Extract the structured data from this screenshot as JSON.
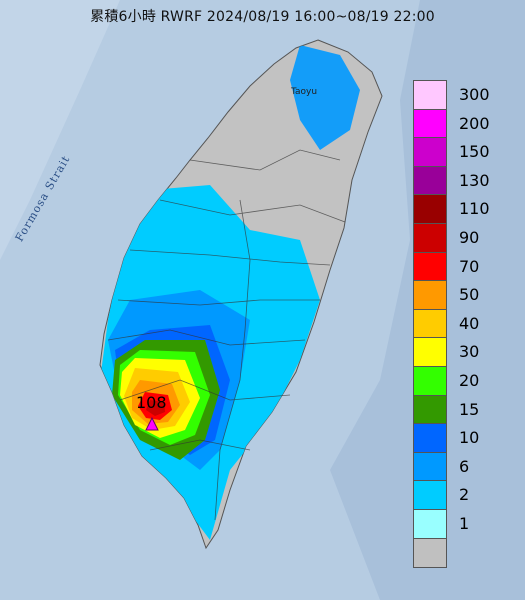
{
  "title": "累積6小時 RWRF 2024/08/19 16:00~08/19 22:00",
  "strait_label": "Formosa Strait",
  "city_label": "Taoyu",
  "max_value": "108",
  "legend": {
    "bins": [
      {
        "label": "300",
        "color": "#ffc8ff"
      },
      {
        "label": "200",
        "color": "#ff00ff"
      },
      {
        "label": "150",
        "color": "#cc00cc"
      },
      {
        "label": "130",
        "color": "#990099"
      },
      {
        "label": "110",
        "color": "#990000"
      },
      {
        "label": "90",
        "color": "#cc0000"
      },
      {
        "label": "70",
        "color": "#ff0000"
      },
      {
        "label": "50",
        "color": "#ff9900"
      },
      {
        "label": "40",
        "color": "#ffcc00"
      },
      {
        "label": "30",
        "color": "#ffff00"
      },
      {
        "label": "20",
        "color": "#33ff00"
      },
      {
        "label": "15",
        "color": "#339900"
      },
      {
        "label": "10",
        "color": "#0066ff"
      },
      {
        "label": "6",
        "color": "#0099ff"
      },
      {
        "label": "2",
        "color": "#00ccff"
      },
      {
        "label": "1",
        "color": "#99ffff"
      },
      {
        "label": "",
        "color": "#c0c0c0"
      }
    ]
  }
}
